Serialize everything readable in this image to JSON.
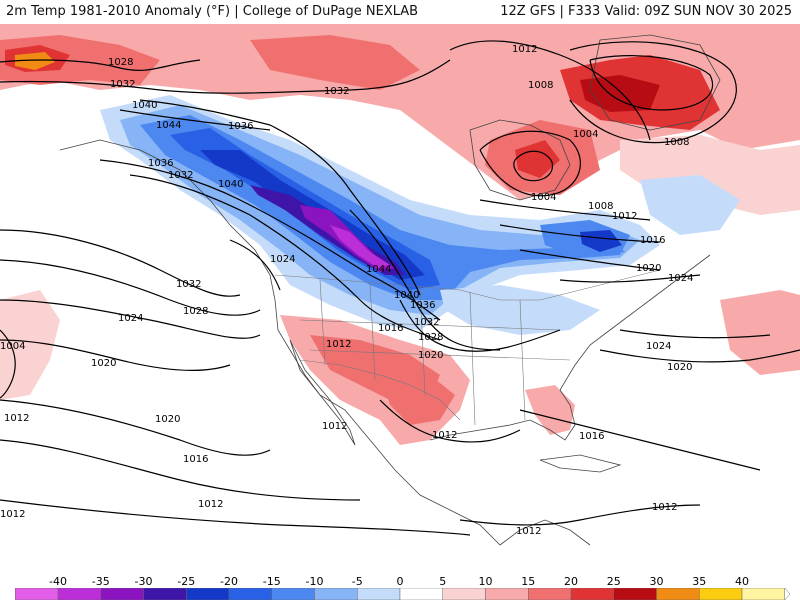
{
  "header": {
    "left": "2m Temp 1981-2010 Anomaly (°F) | College of DuPage NEXLAB",
    "right": "12Z GFS | F333 Valid: 09Z SUN NOV 30 2025"
  },
  "colorbar": {
    "labels": [
      "-40",
      "-35",
      "-30",
      "-25",
      "-20",
      "-15",
      "-10",
      "-5",
      "0",
      "5",
      "10",
      "15",
      "20",
      "25",
      "30",
      "35",
      "40"
    ],
    "colors": [
      "#e35ee8",
      "#bc2fd8",
      "#8c14c0",
      "#3f14a8",
      "#1438c8",
      "#2860e6",
      "#4c88f0",
      "#86b4f6",
      "#c4dcfa",
      "#ffffff",
      "#fad2d2",
      "#f8aaaa",
      "#f07070",
      "#e03434",
      "#b80c14",
      "#f08c14",
      "#fccc10",
      "#fff4a0"
    ]
  },
  "map": {
    "isobar_labels": [
      {
        "id": "p1028-nw",
        "text": "1028"
      },
      {
        "id": "p1032-nw",
        "text": "1032"
      },
      {
        "id": "p1040",
        "text": "1040"
      },
      {
        "id": "p1044",
        "text": "1044"
      },
      {
        "id": "p1036-a",
        "text": "1036"
      },
      {
        "id": "p1036-b",
        "text": "1036"
      },
      {
        "id": "p1032-ak",
        "text": "1032"
      },
      {
        "id": "p1040-b",
        "text": "1040"
      },
      {
        "id": "p1032-n",
        "text": "1032"
      },
      {
        "id": "p1012-ne",
        "text": "1012"
      },
      {
        "id": "p1008-a",
        "text": "1008"
      },
      {
        "id": "p1004-a",
        "text": "1004"
      },
      {
        "id": "p1008-b",
        "text": "1008"
      },
      {
        "id": "p1004-b",
        "text": "1004"
      },
      {
        "id": "p1008-c",
        "text": "1008"
      },
      {
        "id": "p1012-c",
        "text": "1012"
      },
      {
        "id": "p1016-e",
        "text": "1016"
      },
      {
        "id": "p1020-e",
        "text": "1020"
      },
      {
        "id": "p1024-e",
        "text": "1024"
      },
      {
        "id": "p1024-w",
        "text": "1024"
      },
      {
        "id": "p1044-rock",
        "text": "1044"
      },
      {
        "id": "p1040-rock",
        "text": "1040"
      },
      {
        "id": "p1036-rock",
        "text": "1036"
      },
      {
        "id": "p1032-rock",
        "text": "1032"
      },
      {
        "id": "p1028-rock",
        "text": "1028"
      },
      {
        "id": "p1020-rock",
        "text": "1020"
      },
      {
        "id": "p1016-sw",
        "text": "1016"
      },
      {
        "id": "p1012-sw",
        "text": "1012"
      },
      {
        "id": "p1032-pac",
        "text": "1032"
      },
      {
        "id": "p1028-pac",
        "text": "1028"
      },
      {
        "id": "p1024-pac",
        "text": "1024"
      },
      {
        "id": "p1020-pac",
        "text": "1020"
      },
      {
        "id": "p1004-pac",
        "text": "1004"
      },
      {
        "id": "p1012-pac",
        "text": "1012"
      },
      {
        "id": "p1020-pac2",
        "text": "1020"
      },
      {
        "id": "p1016-pac",
        "text": "1016"
      },
      {
        "id": "p1012-pac2",
        "text": "1012"
      },
      {
        "id": "p1012-pacs",
        "text": "1012"
      },
      {
        "id": "p1012-baja",
        "text": "1012"
      },
      {
        "id": "p1012-tx",
        "text": "1012"
      },
      {
        "id": "p1016-fl",
        "text": "1016"
      },
      {
        "id": "p1012-car",
        "text": "1012"
      },
      {
        "id": "p1012-ca",
        "text": "1012"
      },
      {
        "id": "p1024-atl",
        "text": "1024"
      },
      {
        "id": "p1020-atl",
        "text": "1020"
      }
    ]
  }
}
